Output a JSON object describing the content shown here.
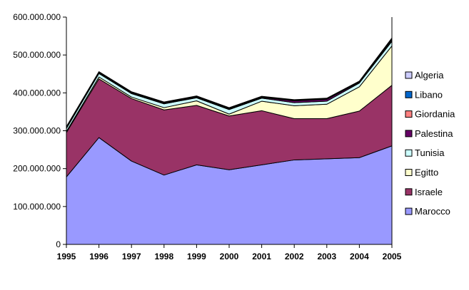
{
  "chart_data": {
    "type": "area",
    "stacked": true,
    "x": [
      "1995",
      "1996",
      "1997",
      "1998",
      "1999",
      "2000",
      "2001",
      "2002",
      "2003",
      "2004",
      "2005"
    ],
    "ylim": [
      0,
      600000000
    ],
    "yticks": [
      0,
      100000000,
      200000000,
      300000000,
      400000000,
      500000000,
      600000000
    ],
    "ytick_labels": [
      "0",
      "100.000.000",
      "200.000.000",
      "300.000.000",
      "400.000.000",
      "500.000.000",
      "600.000.000"
    ],
    "grid": false,
    "legend_position": "right",
    "series": [
      {
        "name": "Marocco",
        "color": "#9999ff",
        "values": [
          178000000,
          282000000,
          220000000,
          183000000,
          210000000,
          197000000,
          210000000,
          223000000,
          226000000,
          229000000,
          260000000
        ]
      },
      {
        "name": "Israele",
        "color": "#993366",
        "values": [
          117000000,
          155000000,
          165000000,
          172000000,
          157000000,
          142000000,
          143000000,
          109000000,
          106000000,
          123000000,
          160000000
        ]
      },
      {
        "name": "Egitto",
        "color": "#ffffcc",
        "values": [
          3000000,
          5000000,
          4000000,
          6000000,
          12000000,
          5000000,
          25000000,
          34000000,
          38000000,
          64000000,
          104000000
        ]
      },
      {
        "name": "Tunisia",
        "color": "#ccffff",
        "values": [
          8000000,
          9000000,
          9000000,
          10000000,
          8000000,
          12000000,
          8000000,
          8000000,
          8000000,
          10000000,
          12000000
        ]
      },
      {
        "name": "Palestina",
        "color": "#660066",
        "values": [
          2000000,
          2000000,
          2000000,
          2000000,
          2000000,
          2000000,
          2000000,
          5000000,
          5000000,
          2000000,
          3000000
        ]
      },
      {
        "name": "Giordania",
        "color": "#ff8080",
        "values": [
          1000000,
          1000000,
          1000000,
          1000000,
          1000000,
          1000000,
          1000000,
          1000000,
          1000000,
          1000000,
          2000000
        ]
      },
      {
        "name": "Libano",
        "color": "#0066cc",
        "values": [
          1000000,
          1000000,
          1000000,
          1000000,
          1000000,
          1000000,
          1000000,
          1000000,
          1000000,
          1000000,
          2000000
        ]
      },
      {
        "name": "Algeria",
        "color": "#ccccff",
        "values": [
          1000000,
          1000000,
          1000000,
          1000000,
          1000000,
          1000000,
          1000000,
          1000000,
          1000000,
          1000000,
          2000000
        ]
      }
    ]
  }
}
